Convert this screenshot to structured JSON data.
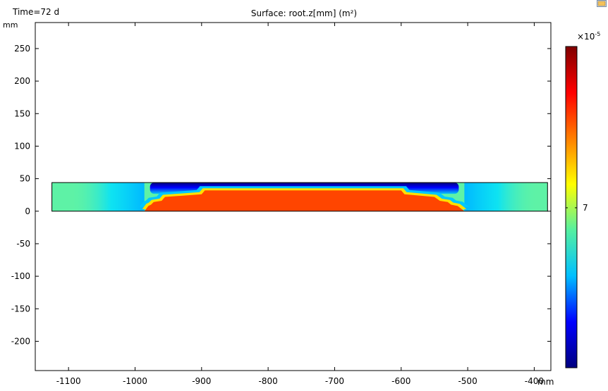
{
  "header": {
    "time_label": "Time=72 d",
    "title": "Surface: root.z[mm] (m²)",
    "y_unit": "mm",
    "x_unit": "mm"
  },
  "colorbar": {
    "exponent_base": "×10",
    "exponent_power": "-5",
    "tick_labels": [
      "7"
    ],
    "colormap": "rainbow",
    "colors": [
      "#00007f",
      "#0000ff",
      "#00bfff",
      "#55f0a0",
      "#ffff00",
      "#ff7f00",
      "#ff0000",
      "#7f0000"
    ]
  },
  "icons": {
    "corner": "window-icon"
  },
  "chart_data": {
    "type": "heatmap",
    "title": "Surface: root.z[mm] (m²)",
    "xlabel": "mm",
    "ylabel": "mm",
    "xlim": [
      -1150,
      -375
    ],
    "ylim": [
      -245,
      290
    ],
    "x_ticks": [
      -1100,
      -1000,
      -900,
      -800,
      -700,
      -600,
      -500,
      -400
    ],
    "y_ticks": [
      250,
      200,
      150,
      100,
      50,
      0,
      -50,
      -100,
      -150,
      -200
    ],
    "domain": {
      "x": [
        -1125,
        -380
      ],
      "y": [
        0,
        44
      ]
    },
    "background_color": "#5ef2a6",
    "high_region": {
      "color": "#ff4500",
      "profile_x": [
        -986,
        -983,
        -980,
        -976,
        -972,
        -960,
        -955,
        -900,
        -895,
        -600,
        -595,
        -550,
        -542,
        -530,
        -525,
        -515,
        -510,
        -505
      ],
      "profile_y": [
        0,
        4,
        8,
        10,
        14,
        16,
        22,
        26,
        32,
        32,
        26,
        22,
        16,
        14,
        10,
        8,
        4,
        0
      ]
    },
    "grid": false
  }
}
